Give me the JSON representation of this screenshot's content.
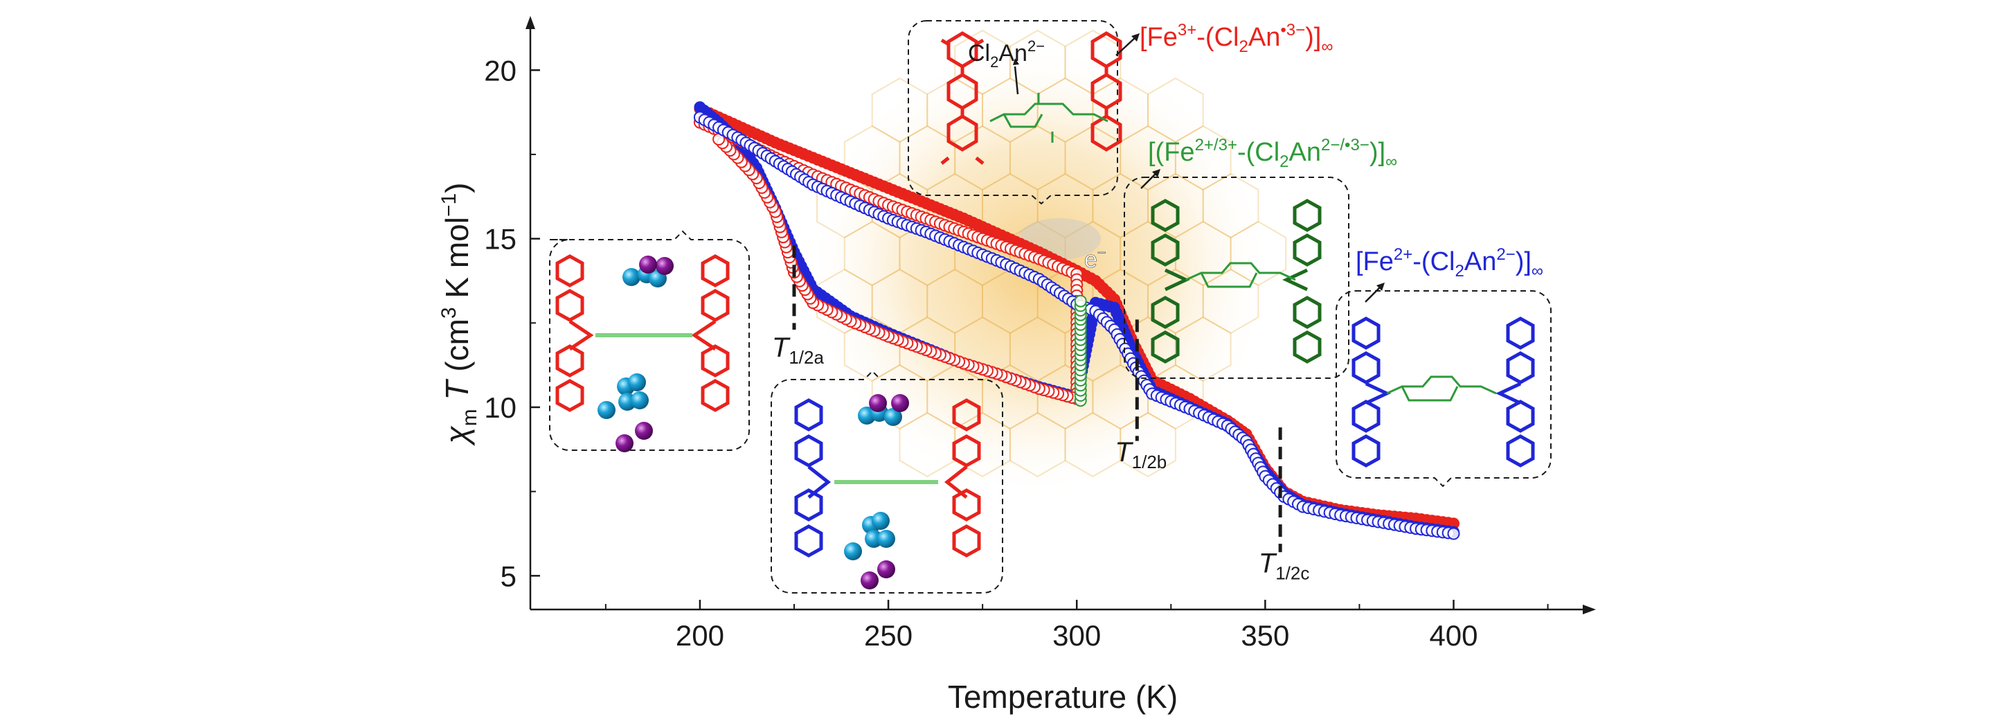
{
  "chart_data": {
    "type": "scatter",
    "xlabel": "Temperature (K)",
    "ylabel": "χmT (cm3 K mol−1)",
    "ylabel_parts": {
      "sym": "χ",
      "sub": "m",
      "var": "T",
      "pre": " (cm",
      "sup1": "3",
      "mid": " K mol",
      "sup2": "−1",
      "post": ")"
    },
    "xlim": [
      155,
      435
    ],
    "ylim": [
      4,
      21.3
    ],
    "xticks": [
      200,
      250,
      300,
      350,
      400
    ],
    "yticks": [
      5,
      10,
      15,
      20
    ],
    "grid": false,
    "colors": {
      "red": "#e8231c",
      "blue": "#2026d6",
      "green": "#2e9a3a",
      "darkgreen": "#1e6b1e",
      "cyan": "#1aa3d9",
      "purple": "#8a1a9a"
    },
    "series": [
      {
        "color": "red",
        "marker": "filled",
        "points": [
          [
            200,
            18.85
          ],
          [
            210,
            18.35
          ],
          [
            220,
            17.85
          ],
          [
            230,
            17.4
          ],
          [
            240,
            16.95
          ],
          [
            250,
            16.5
          ],
          [
            260,
            16.05
          ],
          [
            270,
            15.6
          ],
          [
            280,
            15.1
          ],
          [
            290,
            14.6
          ],
          [
            300,
            14.05
          ],
          [
            305,
            13.75
          ],
          [
            310,
            13.2
          ],
          [
            315,
            11.9
          ],
          [
            320,
            10.8
          ],
          [
            330,
            10.25
          ],
          [
            340,
            9.6
          ],
          [
            345,
            9.2
          ],
          [
            350,
            8.2
          ],
          [
            355,
            7.5
          ],
          [
            360,
            7.2
          ],
          [
            370,
            6.95
          ],
          [
            380,
            6.8
          ],
          [
            390,
            6.7
          ],
          [
            400,
            6.55
          ]
        ]
      },
      {
        "color": "blue",
        "marker": "filled",
        "points": [
          [
            200,
            18.9
          ],
          [
            205,
            18.45
          ],
          [
            210,
            17.9
          ],
          [
            215,
            17.1
          ],
          [
            220,
            15.9
          ],
          [
            225,
            14.6
          ],
          [
            230,
            13.5
          ],
          [
            240,
            12.7
          ],
          [
            250,
            12.2
          ],
          [
            260,
            11.75
          ],
          [
            270,
            11.3
          ],
          [
            280,
            10.95
          ],
          [
            290,
            10.6
          ],
          [
            300,
            10.3
          ],
          [
            305,
            13.1
          ],
          [
            310,
            12.95
          ],
          [
            315,
            11.6
          ],
          [
            320,
            10.5
          ],
          [
            330,
            10.0
          ],
          [
            340,
            9.5
          ],
          [
            345,
            9.0
          ],
          [
            350,
            8.1
          ],
          [
            355,
            7.45
          ],
          [
            360,
            7.1
          ],
          [
            370,
            6.85
          ],
          [
            380,
            6.65
          ],
          [
            390,
            6.45
          ],
          [
            400,
            6.3
          ]
        ]
      },
      {
        "color": "red",
        "marker": "open",
        "points": [
          [
            200,
            18.45
          ],
          [
            210,
            17.95
          ],
          [
            220,
            17.4
          ],
          [
            230,
            16.9
          ],
          [
            240,
            16.45
          ],
          [
            250,
            16.0
          ],
          [
            260,
            15.6
          ],
          [
            270,
            15.2
          ],
          [
            280,
            14.8
          ],
          [
            290,
            14.4
          ],
          [
            300,
            13.95
          ],
          [
            300,
            10.25
          ],
          [
            290,
            10.55
          ],
          [
            280,
            10.95
          ],
          [
            270,
            11.3
          ],
          [
            260,
            11.7
          ],
          [
            250,
            12.1
          ],
          [
            240,
            12.55
          ],
          [
            230,
            13.1
          ],
          [
            225,
            14.0
          ],
          [
            220,
            15.8
          ],
          [
            215,
            16.8
          ],
          [
            210,
            17.4
          ],
          [
            205,
            17.95
          ]
        ]
      },
      {
        "color": "blue",
        "marker": "open",
        "points": [
          [
            200,
            18.6
          ],
          [
            210,
            18.0
          ],
          [
            220,
            17.3
          ],
          [
            230,
            16.6
          ],
          [
            240,
            16.1
          ],
          [
            250,
            15.6
          ],
          [
            260,
            15.2
          ],
          [
            270,
            14.75
          ],
          [
            280,
            14.3
          ],
          [
            290,
            13.8
          ],
          [
            300,
            13.05
          ],
          [
            305,
            12.85
          ],
          [
            310,
            12.3
          ],
          [
            315,
            11.3
          ],
          [
            320,
            10.4
          ],
          [
            330,
            9.95
          ],
          [
            340,
            9.45
          ],
          [
            345,
            9.0
          ],
          [
            350,
            7.95
          ],
          [
            355,
            7.35
          ],
          [
            360,
            7.05
          ],
          [
            370,
            6.8
          ],
          [
            380,
            6.6
          ],
          [
            390,
            6.4
          ],
          [
            400,
            6.25
          ]
        ]
      },
      {
        "color": "green",
        "marker": "open",
        "points": [
          [
            301,
            10.2
          ],
          [
            301,
            10.8
          ],
          [
            301,
            11.4
          ],
          [
            301,
            12.0
          ],
          [
            301,
            12.6
          ],
          [
            301,
            13.15
          ]
        ]
      }
    ],
    "transitions": [
      {
        "x": 225,
        "y_top": 14.8,
        "y_bottom": 12.3,
        "label_var": "T",
        "label_sub": "1/2a",
        "label_x": 226,
        "label_y": 11.5
      },
      {
        "x": 316,
        "y_top": 12.6,
        "y_bottom": 9.0,
        "label_var": "T",
        "label_sub": "1/2b",
        "label_x": 317,
        "label_y": 8.4
      },
      {
        "x": 354,
        "y_top": 9.4,
        "y_bottom": 5.7,
        "label_var": "T",
        "label_sub": "1/2c",
        "label_x": 355,
        "label_y": 5.1
      }
    ],
    "annotations": {
      "fe3": {
        "pre": "[Fe",
        "sup1": "3+",
        "mid": "-(Cl",
        "sub": "2",
        "mid2": "An",
        "sup2": "•3−",
        "post": ")]",
        "inf": "∞"
      },
      "mixed": {
        "pre": "[(Fe",
        "sup1": "2+/3+",
        "mid": "-(Cl",
        "sub": "2",
        "mid2": "An",
        "sup2": "2−/•3−",
        "post": ")]",
        "inf": "∞"
      },
      "fe2": {
        "pre": "[Fe",
        "sup1": "2+",
        "mid": "-(Cl",
        "sub": "2",
        "mid2": "An",
        "sup2": "2−",
        "post": ")]",
        "inf": "∞"
      },
      "ligand": {
        "pre": "Cl",
        "sub": "2",
        "mid": "An",
        "sup": "2−"
      },
      "electron": {
        "pre": "e",
        "sup": "−"
      }
    }
  }
}
